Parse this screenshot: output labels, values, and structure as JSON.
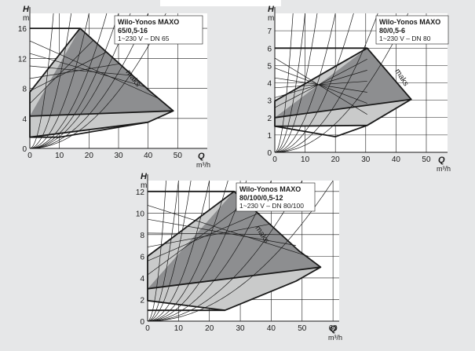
{
  "chart_data": [
    {
      "type": "line",
      "title": "Wilo-Yonos MAXO",
      "model": "65/0,5-16",
      "spec": "1~230 V – DN 65",
      "ylabel": "H",
      "yunit": "m",
      "xlabel": "Q",
      "xunit": "m³/h",
      "xlim": [
        0,
        60
      ],
      "ylim": [
        0,
        18
      ],
      "xticks": [
        0,
        10,
        20,
        30,
        40,
        50
      ],
      "yticks": [
        0,
        4,
        8,
        12,
        16
      ],
      "max_label": "maks",
      "series": [
        {
          "values": [
            [
              0,
              16
            ],
            [
              17,
              16
            ],
            [
              41,
              7.5
            ],
            [
              48.5,
              5
            ],
            [
              40,
              3.5
            ],
            [
              0,
              1.5
            ],
            [
              0,
              7.5
            ],
            [
              17,
              16
            ]
          ]
        },
        {
          "values": [
            [
              0,
              1.5
            ],
            [
              10,
              1.5
            ],
            [
              40,
              3.5
            ]
          ]
        },
        {
          "values": [
            [
              0,
              4.3
            ],
            [
              48.5,
              5
            ]
          ]
        }
      ]
    },
    {
      "type": "line",
      "title": "Wilo-Yonos MAXO",
      "model": "80/0,5-6",
      "spec": "1~230 V – DN 80",
      "ylabel": "H",
      "yunit": "m",
      "xlabel": "Q",
      "xunit": "m³/h",
      "xlim": [
        0,
        57
      ],
      "ylim": [
        0,
        8
      ],
      "xticks": [
        0,
        10,
        20,
        30,
        40,
        50
      ],
      "yticks": [
        0,
        1,
        2,
        3,
        4,
        5,
        6,
        7
      ],
      "max_label": "maks",
      "series": [
        {
          "values": [
            [
              0,
              6
            ],
            [
              30.5,
              6
            ],
            [
              45,
              3.05
            ],
            [
              30.5,
              1.55
            ],
            [
              0,
              1.5
            ],
            [
              0,
              2.95
            ],
            [
              30.5,
              6
            ]
          ]
        },
        {
          "values": [
            [
              0,
              1.5
            ],
            [
              20,
              0.9
            ],
            [
              30.5,
              1.55
            ]
          ]
        },
        {
          "values": [
            [
              0,
              2
            ],
            [
              45,
              3.05
            ]
          ]
        }
      ]
    },
    {
      "type": "line",
      "title": "Wilo-Yonos MAXO",
      "model": "80/100/0,5-12",
      "spec": "1~230 V – DN 80/100",
      "ylabel": "H",
      "yunit": "m",
      "xlabel": "Q",
      "xunit": "m³/h",
      "xlim": [
        0,
        62
      ],
      "ylim": [
        0,
        13
      ],
      "xticks": [
        0,
        10,
        20,
        30,
        40,
        50,
        60
      ],
      "yticks": [
        0,
        2,
        4,
        6,
        8,
        10,
        12
      ],
      "max_label": "maks",
      "series": [
        {
          "values": [
            [
              0,
              12
            ],
            [
              28,
              12
            ],
            [
              49,
              6.5
            ],
            [
              56,
              5
            ],
            [
              48,
              3.7
            ],
            [
              25,
              1
            ],
            [
              0,
              1.9
            ],
            [
              0,
              6
            ],
            [
              28,
              12
            ]
          ]
        },
        {
          "values": [
            [
              0,
              1
            ],
            [
              25,
              1
            ]
          ]
        },
        {
          "values": [
            [
              0,
              3
            ],
            [
              56,
              5
            ]
          ]
        }
      ]
    }
  ]
}
